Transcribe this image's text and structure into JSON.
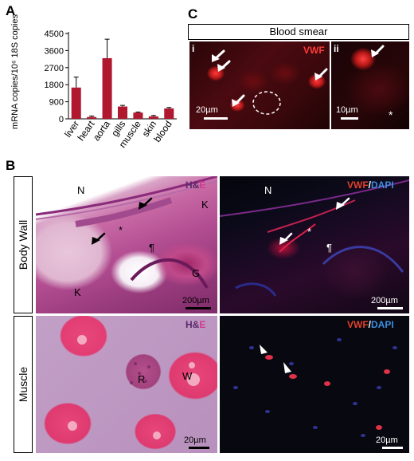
{
  "panel_a": {
    "letter": "A",
    "chart_data": {
      "type": "bar",
      "categories": [
        "liver",
        "heart",
        "aorta",
        "gills",
        "muscle",
        "skin",
        "blood"
      ],
      "values": [
        1650,
        100,
        3200,
        650,
        330,
        130,
        550
      ],
      "errors": [
        550,
        50,
        1000,
        60,
        30,
        50,
        50
      ],
      "ylabel": "mRNA copies/10⁶ 18S copies",
      "ylim": [
        0,
        4500
      ],
      "yticks": [
        0,
        900,
        1800,
        2700,
        3600,
        4500
      ],
      "color": "#b0182f"
    }
  },
  "panel_b": {
    "letter": "B",
    "row_labels": [
      "Body Wall",
      "Muscle"
    ],
    "stain_he": [
      "H&",
      "E"
    ],
    "stain_vwf": [
      "VWF",
      "/",
      "DAPI"
    ],
    "body_wall_he": {
      "labels": [
        "N",
        "K",
        "K",
        "G",
        "*",
        "¶"
      ],
      "scale": "200µm"
    },
    "body_wall_fl": {
      "labels": [
        "N",
        "*",
        "¶"
      ],
      "scale": "200µm"
    },
    "muscle_he": {
      "labels": [
        "W",
        "R"
      ],
      "scale": "20µm"
    },
    "muscle_fl": {
      "scale": "20µm"
    }
  },
  "panel_c": {
    "letter": "C",
    "title": "Blood smear",
    "sub_i": "i",
    "sub_ii": "ii",
    "stain": "VWF",
    "scale_i": "20µm",
    "scale_ii": "10µm",
    "asterisk": "*"
  },
  "colors": {
    "bar": "#b0182f",
    "he_accent": "#8a2a7a",
    "vwf": "#e0412a",
    "dapi": "#3a8ee0"
  }
}
